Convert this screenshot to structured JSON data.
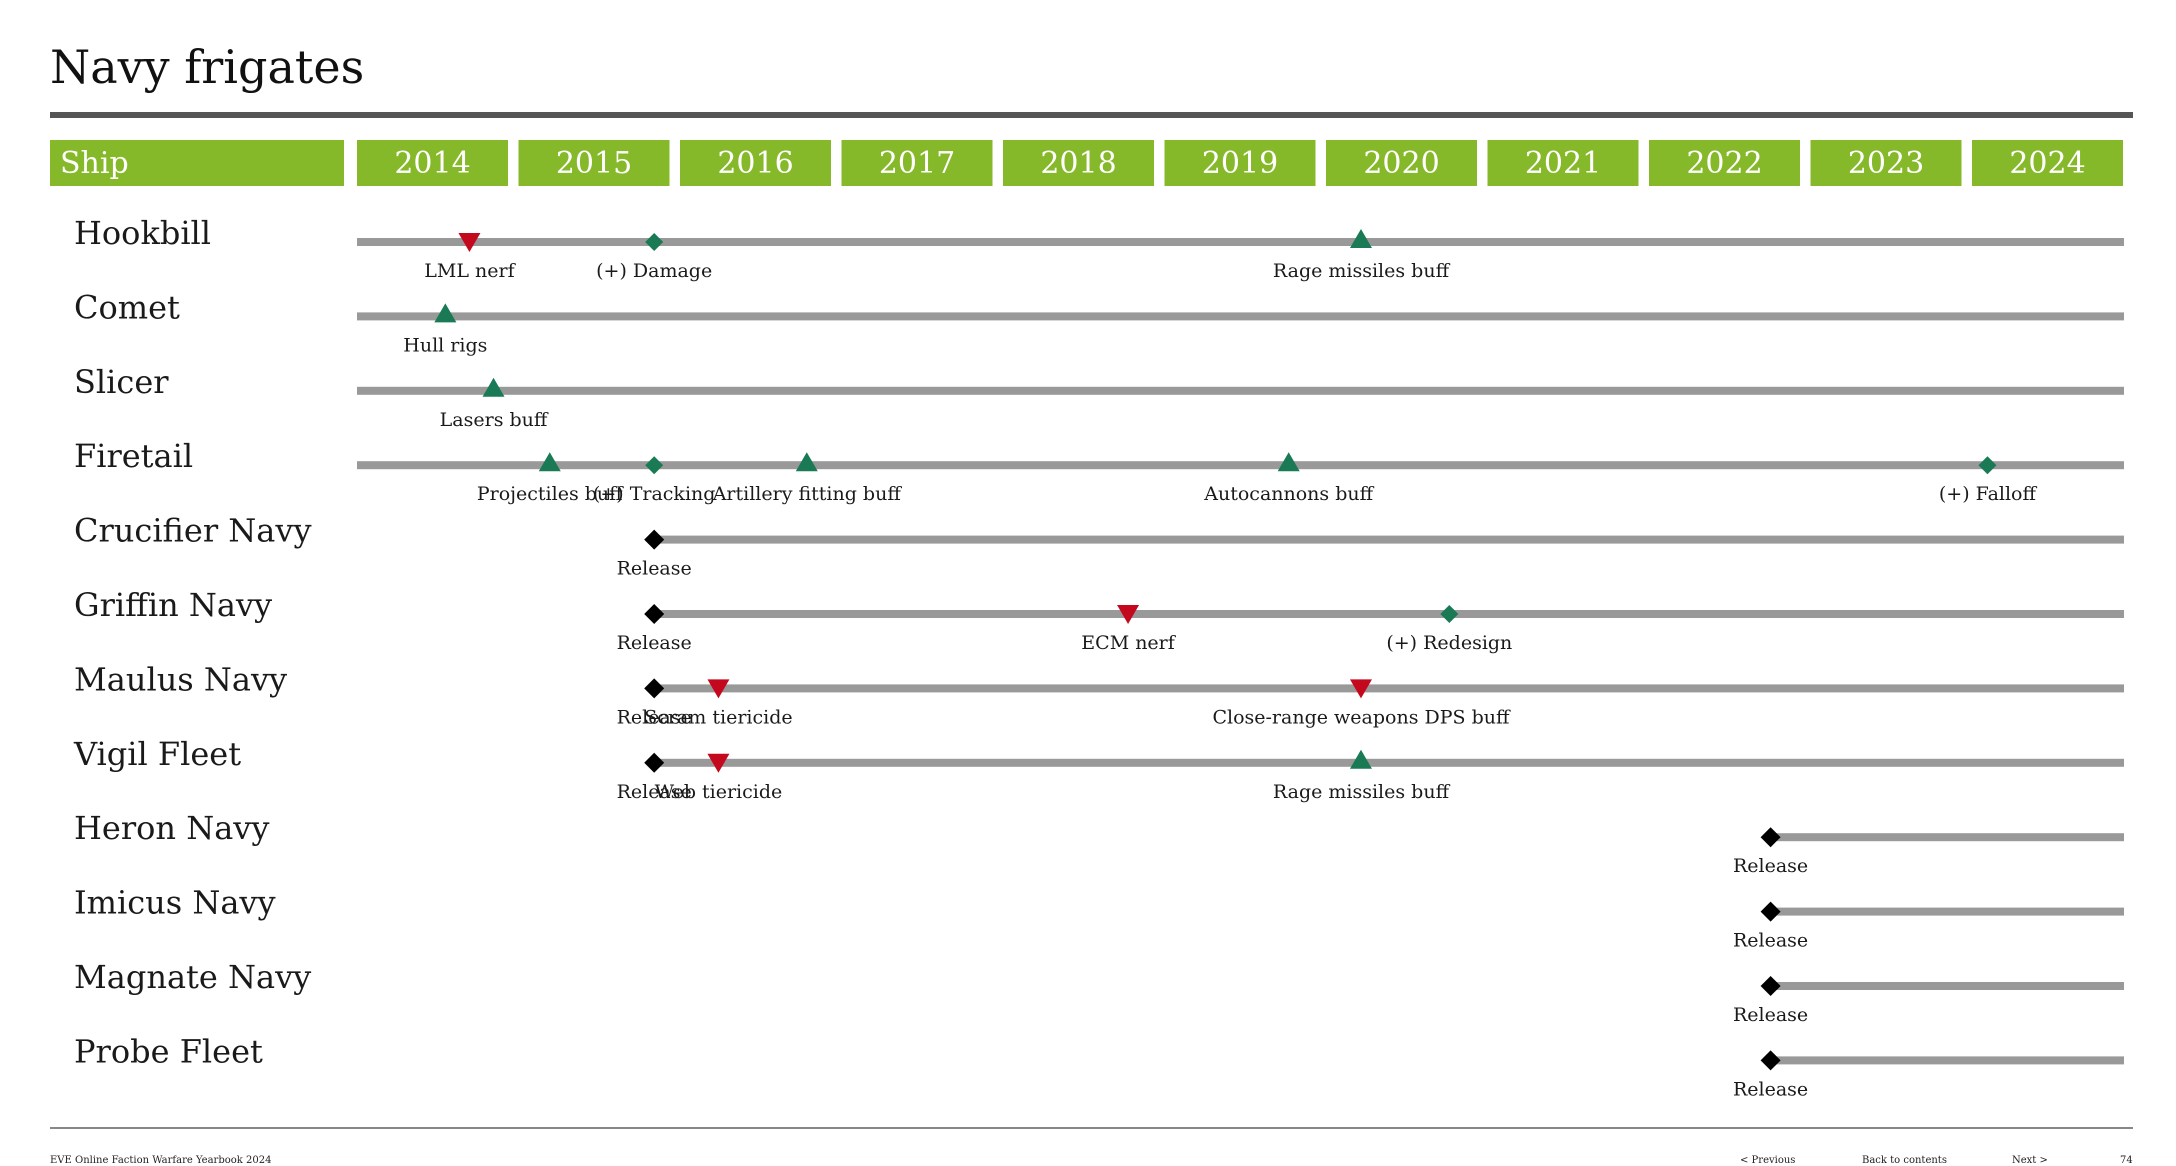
{
  "page": {
    "title": "Navy frigates",
    "footer_left": "EVE Online Faction Warfare Yearbook 2024",
    "footer_prev": "< Previous",
    "footer_back": "Back to contents",
    "footer_next": "Next >",
    "footer_page": "74"
  },
  "colors": {
    "header_green": "#86b929",
    "bar_gray": "#999999",
    "buff_green": "#1a7a55",
    "nerf_red": "#c4091f",
    "release_black": "#000000"
  },
  "chart_data": {
    "type": "timeline",
    "header_label": "Ship",
    "years": [
      "2014",
      "2015",
      "2016",
      "2017",
      "2018",
      "2019",
      "2020",
      "2021",
      "2022",
      "2023",
      "2024"
    ],
    "marker_legend": {
      "triangle-up": "buff",
      "triangle-down": "nerf",
      "diamond-green": "change",
      "diamond-black": "release"
    },
    "rows": [
      {
        "ship": "Hookbill",
        "start": 2014.0,
        "events": [
          {
            "t": 2014.7,
            "type": "nerf",
            "label": "LML nerf"
          },
          {
            "t": 2015.85,
            "type": "change",
            "label": "(+) Damage"
          },
          {
            "t": 2020.25,
            "type": "buff",
            "label": "Rage missiles buff"
          }
        ]
      },
      {
        "ship": "Comet",
        "start": 2014.0,
        "events": [
          {
            "t": 2014.55,
            "type": "buff",
            "label": "Hull rigs"
          }
        ]
      },
      {
        "ship": "Slicer",
        "start": 2014.0,
        "events": [
          {
            "t": 2014.85,
            "type": "buff",
            "label": "Lasers buff"
          }
        ]
      },
      {
        "ship": "Firetail",
        "start": 2014.0,
        "events": [
          {
            "t": 2015.2,
            "type": "buff",
            "label": "Projectiles buff"
          },
          {
            "t": 2015.85,
            "type": "change",
            "label": "(+) Tracking"
          },
          {
            "t": 2016.8,
            "type": "buff",
            "label": "Artillery fitting buff"
          },
          {
            "t": 2019.8,
            "type": "buff",
            "label": "Autocannons buff"
          },
          {
            "t": 2024.15,
            "type": "change",
            "label": "(+) Falloff"
          }
        ]
      },
      {
        "ship": "Crucifier Navy",
        "start": 2015.85,
        "events": [
          {
            "t": 2015.85,
            "type": "release",
            "label": "Release"
          }
        ]
      },
      {
        "ship": "Griffin Navy",
        "start": 2015.85,
        "events": [
          {
            "t": 2015.85,
            "type": "release",
            "label": "Release"
          },
          {
            "t": 2018.8,
            "type": "nerf",
            "label": "ECM nerf"
          },
          {
            "t": 2020.8,
            "type": "change",
            "label": "(+) Redesign"
          }
        ]
      },
      {
        "ship": "Maulus Navy",
        "start": 2015.85,
        "events": [
          {
            "t": 2015.85,
            "type": "release",
            "label": "Release"
          },
          {
            "t": 2016.25,
            "type": "nerf",
            "label": "Scram tiericide"
          },
          {
            "t": 2020.25,
            "type": "nerf",
            "label": "Close-range weapons DPS buff"
          }
        ]
      },
      {
        "ship": "Vigil Fleet",
        "start": 2015.85,
        "events": [
          {
            "t": 2015.85,
            "type": "release",
            "label": "Release"
          },
          {
            "t": 2016.25,
            "type": "nerf",
            "label": "Web tiericide"
          },
          {
            "t": 2020.25,
            "type": "buff",
            "label": "Rage missiles buff"
          }
        ]
      },
      {
        "ship": "Heron Navy",
        "start": 2022.8,
        "events": [
          {
            "t": 2022.8,
            "type": "release",
            "label": "Release"
          }
        ]
      },
      {
        "ship": "Imicus Navy",
        "start": 2022.8,
        "events": [
          {
            "t": 2022.8,
            "type": "release",
            "label": "Release"
          }
        ]
      },
      {
        "ship": "Magnate Navy",
        "start": 2022.8,
        "events": [
          {
            "t": 2022.8,
            "type": "release",
            "label": "Release"
          }
        ]
      },
      {
        "ship": "Probe Fleet",
        "start": 2022.8,
        "events": [
          {
            "t": 2022.8,
            "type": "release",
            "label": "Release"
          }
        ]
      }
    ]
  }
}
